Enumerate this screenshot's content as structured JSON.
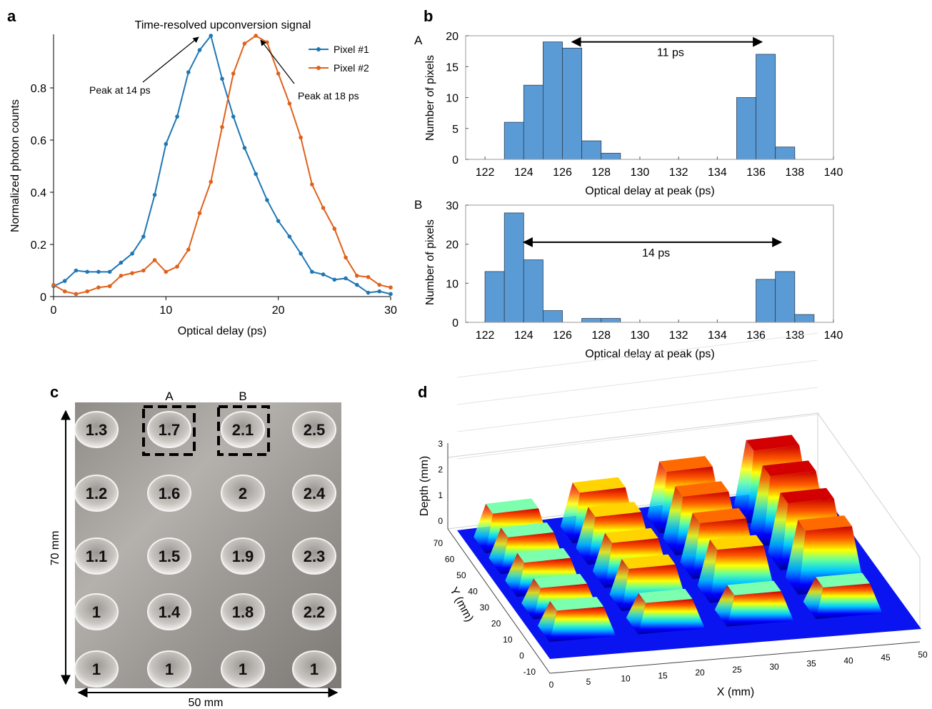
{
  "panels": {
    "a": {
      "letter": "a"
    },
    "b": {
      "letter": "b"
    },
    "c": {
      "letter": "c"
    },
    "d": {
      "letter": "d"
    }
  },
  "chart_data": [
    {
      "id": "a",
      "type": "line",
      "title": "Time-resolved upconversion signal",
      "xlabel": "Optical delay (ps)",
      "ylabel": "Normalized photon counts",
      "xlim": [
        0,
        30
      ],
      "ylim": [
        0,
        1
      ],
      "xticks": [
        0,
        10,
        20,
        30
      ],
      "yticks": [
        0,
        0.2,
        0.4,
        0.6,
        0.8
      ],
      "x": [
        0,
        1,
        2,
        3,
        4,
        5,
        6,
        7,
        8,
        9,
        10,
        11,
        12,
        13,
        14,
        15,
        16,
        17,
        18,
        19,
        20,
        21,
        22,
        23,
        24,
        25,
        26,
        27,
        28,
        29,
        30
      ],
      "series": [
        {
          "name": "Pixel #1",
          "color": "#1f77b4",
          "values": [
            0.04,
            0.06,
            0.1,
            0.095,
            0.095,
            0.095,
            0.13,
            0.165,
            0.23,
            0.39,
            0.585,
            0.69,
            0.86,
            0.945,
            1.0,
            0.835,
            0.69,
            0.57,
            0.47,
            0.37,
            0.29,
            0.23,
            0.165,
            0.095,
            0.085,
            0.065,
            0.07,
            0.045,
            0.015,
            0.02,
            0.01
          ]
        },
        {
          "name": "Pixel #2",
          "color": "#e0611b",
          "values": [
            0.045,
            0.02,
            0.01,
            0.02,
            0.035,
            0.04,
            0.08,
            0.09,
            0.1,
            0.14,
            0.095,
            0.115,
            0.18,
            0.32,
            0.44,
            0.65,
            0.855,
            0.97,
            1.0,
            0.975,
            0.855,
            0.74,
            0.61,
            0.43,
            0.34,
            0.26,
            0.15,
            0.08,
            0.075,
            0.045,
            0.035
          ]
        }
      ],
      "legend": "top-right",
      "annotations": [
        {
          "text": "Peak at 14 ps",
          "x": 14,
          "y": 1.0
        },
        {
          "text": "Peak at 18 ps",
          "x": 18,
          "y": 1.0
        }
      ]
    },
    {
      "id": "b-A",
      "type": "bar",
      "panel_label": "A",
      "xlabel": "Optical delay at peak (ps)",
      "ylabel": "Number of pixels",
      "xlim": [
        121,
        140
      ],
      "ylim": [
        0,
        20
      ],
      "xticks": [
        122,
        124,
        126,
        128,
        130,
        132,
        134,
        136,
        138,
        140
      ],
      "yticks": [
        0,
        5,
        10,
        15,
        20
      ],
      "bins": [
        {
          "x0": 123,
          "x1": 124,
          "count": 6
        },
        {
          "x0": 124,
          "x1": 125,
          "count": 12
        },
        {
          "x0": 125,
          "x1": 126,
          "count": 19
        },
        {
          "x0": 126,
          "x1": 127,
          "count": 18
        },
        {
          "x0": 127,
          "x1": 128,
          "count": 3
        },
        {
          "x0": 128,
          "x1": 129,
          "count": 1
        },
        {
          "x0": 135,
          "x1": 136,
          "count": 10
        },
        {
          "x0": 136,
          "x1": 137,
          "count": 17
        },
        {
          "x0": 137,
          "x1": 138,
          "count": 2
        }
      ],
      "arrow": {
        "from": 126.5,
        "to": 136.3,
        "at": 19,
        "label": "11 ps"
      }
    },
    {
      "id": "b-B",
      "type": "bar",
      "panel_label": "B",
      "xlabel": "Optical delay at peak (ps)",
      "ylabel": "Number of pixels",
      "xlim": [
        121,
        140
      ],
      "ylim": [
        0,
        30
      ],
      "xticks": [
        122,
        124,
        126,
        128,
        130,
        132,
        134,
        136,
        138,
        140
      ],
      "yticks": [
        0,
        10,
        20,
        30
      ],
      "bins": [
        {
          "x0": 122,
          "x1": 123,
          "count": 13
        },
        {
          "x0": 123,
          "x1": 124,
          "count": 28
        },
        {
          "x0": 124,
          "x1": 125,
          "count": 16
        },
        {
          "x0": 125,
          "x1": 126,
          "count": 3
        },
        {
          "x0": 127,
          "x1": 128,
          "count": 1
        },
        {
          "x0": 128,
          "x1": 129,
          "count": 1
        },
        {
          "x0": 136,
          "x1": 137,
          "count": 11
        },
        {
          "x0": 137,
          "x1": 138,
          "count": 13
        },
        {
          "x0": 138,
          "x1": 139,
          "count": 2
        }
      ],
      "arrow": {
        "from": 124,
        "to": 137.3,
        "at": 20.5,
        "label": "14 ps"
      }
    },
    {
      "id": "c",
      "type": "table",
      "column_labels": [
        "A",
        "B"
      ],
      "width_label": "50 mm",
      "height_label": "70 mm",
      "grid": [
        [
          "1.3",
          "1.7",
          "2.1",
          "2.5"
        ],
        [
          "1.2",
          "1.6",
          "2",
          "2.4"
        ],
        [
          "1.1",
          "1.5",
          "1.9",
          "2.3"
        ],
        [
          "1",
          "1.4",
          "1.8",
          "2.2"
        ],
        [
          "1",
          "1",
          "1",
          "1"
        ]
      ],
      "highlighted": [
        "1.7",
        "2.1"
      ]
    },
    {
      "id": "d",
      "type": "heatmap",
      "xlabel": "X (mm)",
      "ylabel": "Y (mm)",
      "zlabel": "Depth (mm)",
      "xticks": [
        0,
        5,
        10,
        15,
        20,
        25,
        30,
        35,
        40,
        45,
        50
      ],
      "yticks": [
        -10,
        0,
        10,
        20,
        30,
        40,
        50,
        60,
        70
      ],
      "zticks": [
        0,
        1,
        2,
        3
      ],
      "colormap": "jet",
      "depth_grid_mm": [
        [
          1.3,
          1.7,
          2.1,
          2.5
        ],
        [
          1.2,
          1.6,
          2.0,
          2.4
        ],
        [
          1.1,
          1.5,
          1.9,
          2.3
        ],
        [
          1.0,
          1.4,
          1.8,
          2.2
        ],
        [
          1.0,
          1.0,
          1.0,
          1.0
        ]
      ]
    }
  ]
}
